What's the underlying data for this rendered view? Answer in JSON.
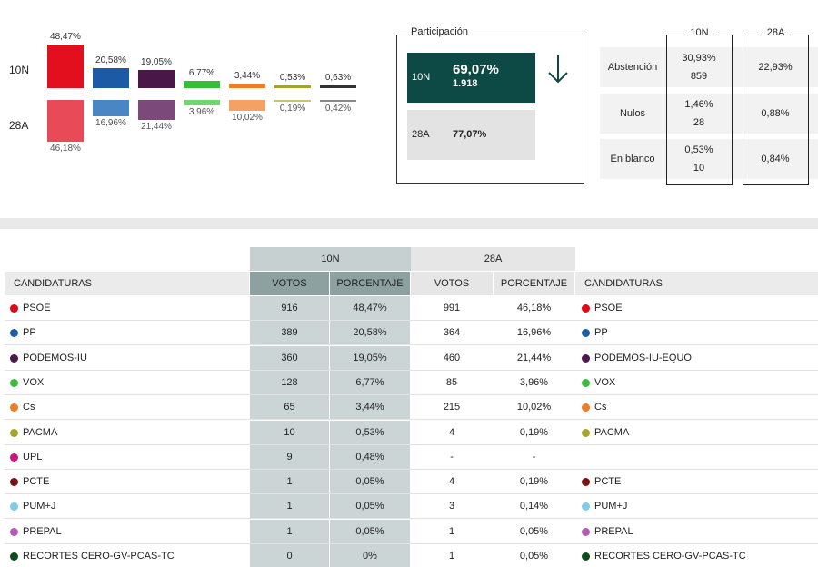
{
  "bars": {
    "row_labels": [
      "10N",
      "28A"
    ],
    "parties": [
      {
        "color_10n": "#e30f1f",
        "color_28a": "#e84a57",
        "n10": {
          "value": 48.47,
          "label": "48,47%"
        },
        "a28": {
          "value": 46.18,
          "label": "46,18%"
        }
      },
      {
        "color_10n": "#1c5aa6",
        "color_28a": "#4a86c4",
        "n10": {
          "value": 20.58,
          "label": "20,58%"
        },
        "a28": {
          "value": 16.96,
          "label": "16,96%"
        }
      },
      {
        "color_10n": "#4a1749",
        "color_28a": "#7b4a7b",
        "n10": {
          "value": 19.05,
          "label": "19,05%"
        },
        "a28": {
          "value": 21.44,
          "label": "21,44%"
        }
      },
      {
        "color_10n": "#36be36",
        "color_28a": "#74d474",
        "n10": {
          "value": 6.77,
          "label": "6,77%"
        },
        "a28": {
          "value": 3.96,
          "label": "3,96%"
        }
      },
      {
        "color_10n": "#f07c24",
        "color_28a": "#f5a164",
        "n10": {
          "value": 3.44,
          "label": "3,44%"
        },
        "a28": {
          "value": 10.02,
          "label": "10,02%"
        }
      },
      {
        "color_10n": "#a6a22a",
        "color_28a": "#c8c56a",
        "n10": {
          "value": 0.53,
          "label": "0,53%"
        },
        "a28": {
          "value": 0.19,
          "label": "0,19%"
        }
      },
      {
        "color_10n": "#333333",
        "color_28a": "#888888",
        "n10": {
          "value": 0.63,
          "label": "0,63%"
        },
        "a28": {
          "value": 0.42,
          "label": "0,42%"
        }
      }
    ]
  },
  "participation": {
    "title": "Participación",
    "n10": {
      "label": "10N",
      "percent": "69,07%",
      "votes": "1.918"
    },
    "a28": {
      "label": "28A",
      "percent": "77,07%"
    }
  },
  "other_votes": {
    "headers": [
      "10N",
      "28A"
    ],
    "rows": [
      {
        "label": "Abstención",
        "n10_percent": "30,93%",
        "n10_votes": 859,
        "a28_percent": "22,93%"
      },
      {
        "label": "Nulos",
        "n10_percent": "1,46%",
        "n10_votes": 28,
        "a28_percent": "0,88%"
      },
      {
        "label": "En blanco",
        "n10_percent": "0,53%",
        "n10_votes": 10,
        "a28_percent": "0,84%"
      }
    ]
  },
  "results": {
    "group_headers": [
      "10N",
      "28A"
    ],
    "columns": [
      "CANDIDATURAS",
      "VOTOS",
      "PORCENTAJE",
      "VOTOS",
      "PORCENTAJE",
      "CANDIDATURAS"
    ],
    "rows": [
      {
        "color": "#e30613",
        "name": "PSOE",
        "votes_10n": 916,
        "pct_10n": "48,47%",
        "votes_28a": 991,
        "pct_28a": "46,18%",
        "name_28a": "PSOE"
      },
      {
        "color": "#1d5da8",
        "name": "PP",
        "votes_10n": 389,
        "pct_10n": "20,58%",
        "votes_28a": 364,
        "pct_28a": "16,96%",
        "name_28a": "PP"
      },
      {
        "color": "#4b1a4e",
        "name": "PODEMOS-IU",
        "votes_10n": 360,
        "pct_10n": "19,05%",
        "votes_28a": 460,
        "pct_28a": "21,44%",
        "name_28a": "PODEMOS-IU-EQUO"
      },
      {
        "color": "#3dbb3d",
        "name": "VOX",
        "votes_10n": 128,
        "pct_10n": "6,77%",
        "votes_28a": 85,
        "pct_28a": "3,96%",
        "name_28a": "VOX"
      },
      {
        "color": "#f07c24",
        "name": "Cs",
        "votes_10n": 65,
        "pct_10n": "3,44%",
        "votes_28a": 215,
        "pct_28a": "10,02%",
        "name_28a": "Cs"
      },
      {
        "color": "#a5a52c",
        "name": "PACMA",
        "votes_10n": 10,
        "pct_10n": "0,53%",
        "votes_28a": 4,
        "pct_28a": "0,19%",
        "name_28a": "PACMA"
      },
      {
        "color": "#d0157a",
        "name": "UPL",
        "votes_10n": 9,
        "pct_10n": "0,48%",
        "votes_28a": "-",
        "pct_28a": "-",
        "name_28a": null
      },
      {
        "color": "#7a1010",
        "name": "PCTE",
        "votes_10n": 1,
        "pct_10n": "0,05%",
        "votes_28a": 4,
        "pct_28a": "0,19%",
        "name_28a": "PCTE"
      },
      {
        "color": "#7ecde8",
        "name": "PUM+J",
        "votes_10n": 1,
        "pct_10n": "0,05%",
        "votes_28a": 3,
        "pct_28a": "0,14%",
        "name_28a": "PUM+J"
      },
      {
        "color": "#b65cb8",
        "name": "PREPAL",
        "votes_10n": 1,
        "pct_10n": "0,05%",
        "votes_28a": 1,
        "pct_28a": "0,05%",
        "name_28a": "PREPAL"
      },
      {
        "color": "#0c4d1c",
        "name": "RECORTES CERO-GV-PCAS-TC",
        "votes_10n": 0,
        "pct_10n": "0%",
        "votes_28a": 1,
        "pct_28a": "0,05%",
        "name_28a": "RECORTES CERO-GV-PCAS-TC"
      }
    ]
  }
}
